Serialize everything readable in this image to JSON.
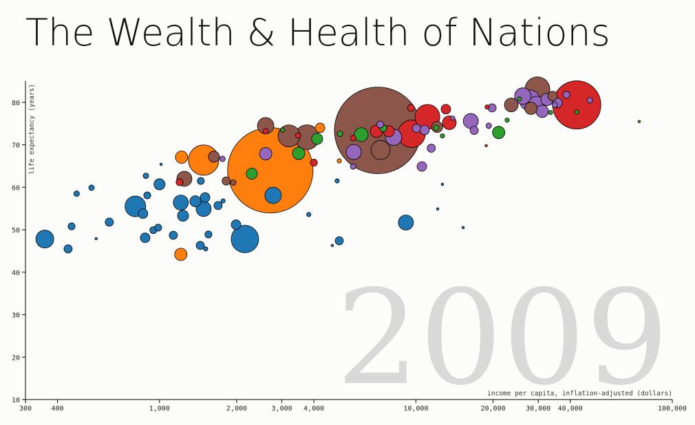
{
  "chart_data": {
    "type": "scatter",
    "title": "The Wealth & Health of Nations",
    "xlabel": "income per capita, inflation-adjusted (dollars)",
    "ylabel": "life expectancy (years)",
    "annotation": "2009",
    "xscale": "log",
    "xlim": [
      300,
      100000
    ],
    "ylim": [
      10,
      85
    ],
    "xticks": [
      300,
      400,
      {
        "value": 1000,
        "label": "1,000"
      },
      {
        "value": 2000,
        "label": "2,000"
      },
      {
        "value": 3000,
        "label": "3,000"
      },
      {
        "value": 4000,
        "label": "4,000"
      },
      {
        "value": 10000,
        "label": "10,000"
      },
      {
        "value": 20000,
        "label": "20,000"
      },
      {
        "value": 30000,
        "label": "30,000"
      },
      {
        "value": 40000,
        "label": "40,000"
      },
      {
        "value": 100000,
        "label": "100,000"
      }
    ],
    "yticks": [
      10,
      20,
      30,
      40,
      50,
      60,
      70,
      80
    ],
    "series": [
      {
        "color": "#1f77b4",
        "x": [
          357,
          440,
          454,
          475,
          543,
          566,
          637,
          805,
          862,
          896,
          879,
          885,
          946,
          988,
          1000,
          1014,
          1132,
          1211,
          1235,
          1380,
          1506,
          1486,
          1449,
          1442,
          1514,
          1552,
          1692,
          1770,
          1988,
          2153,
          2773,
          3820,
          4720,
          5024,
          4930,
          9140,
          12160,
          12690,
          15280
        ],
        "y": [
          47.8,
          45.5,
          50.8,
          58.5,
          59.9,
          47.9,
          51.8,
          55.5,
          53.8,
          58.1,
          48.1,
          62.7,
          49.9,
          50.5,
          60.7,
          65.4,
          48.7,
          56.4,
          53.3,
          56.7,
          57.6,
          54.9,
          61.5,
          46.3,
          45.5,
          48.9,
          55.7,
          56.8,
          51.2,
          47.8,
          58.1,
          53.6,
          46.3,
          47.4,
          61.5,
          51.7,
          54.9,
          60.7,
          50.5
        ],
        "size": [
          52,
          11,
          8,
          5,
          5,
          1,
          11,
          70,
          15,
          8,
          15,
          5,
          8,
          8,
          20,
          1,
          11,
          37,
          20,
          20,
          15,
          37,
          8,
          11,
          3,
          8,
          11,
          3,
          15,
          123,
          44,
          3,
          1,
          11,
          3,
          37,
          1,
          1,
          1
        ]
      },
      {
        "color": "#ff7f0e",
        "x": [
          1211,
          1219,
          1486,
          2704,
          4230,
          5024
        ],
        "y": [
          44.2,
          67.1,
          66.4,
          64.0,
          74.0,
          66.2
        ],
        "size": [
          25,
          25,
          150,
          1190,
          15,
          3
        ]
      },
      {
        "color": "#2ca02c",
        "x": [
          2290,
          3020,
          3490,
          4120,
          5060,
          6120,
          7460,
          12000,
          12690,
          21030,
          22690,
          25350,
          33500,
          42400,
          74300
        ],
        "y": [
          63.2,
          73.5,
          68.0,
          71.4,
          72.6,
          72.4,
          73.9,
          74.0,
          72.1,
          72.9,
          75.8,
          80.8,
          77.6,
          77.7,
          75.5
        ],
        "size": [
          20,
          3,
          25,
          20,
          5,
          31,
          8,
          5,
          3,
          25,
          3,
          3,
          3,
          3,
          1
        ]
      },
      {
        "color": "#d62728",
        "x": [
          1197,
          2594,
          3470,
          4000,
          5690,
          7020,
          7840,
          9620,
          9570,
          11090,
          13090,
          13500,
          42400,
          18950,
          18800
        ],
        "y": [
          61.2,
          73.2,
          72.2,
          65.8,
          71.6,
          73.2,
          73.2,
          72.6,
          78.7,
          76.6,
          78.4,
          75.2,
          79.4,
          78.9,
          69.8
        ],
        "size": [
          8,
          5,
          5,
          8,
          5,
          25,
          20,
          123,
          8,
          100,
          15,
          31,
          378,
          3,
          1
        ]
      },
      {
        "color": "#9467bd",
        "x": [
          1760,
          2594,
          5720,
          5690,
          7260,
          8180,
          10050,
          10550,
          10810,
          11480,
          13930,
          16370,
          16880,
          19820,
          19240,
          26120,
          27790,
          29560,
          31100,
          32460,
          35650,
          34800,
          38640,
          47690
        ],
        "y": [
          66.7,
          67.9,
          68.3,
          64.9,
          74.8,
          71.8,
          73.9,
          64.9,
          73.5,
          69.2,
          76.3,
          75.6,
          73.4,
          78.7,
          74.5,
          81.5,
          80.5,
          79.5,
          77.9,
          80.7,
          79.9,
          79.4,
          81.8,
          80.5
        ],
        "size": [
          5,
          25,
          37,
          5,
          8,
          44,
          11,
          15,
          15,
          11,
          3,
          37,
          11,
          11,
          5,
          44,
          70,
          44,
          25,
          25,
          15,
          5,
          8,
          5
        ]
      },
      {
        "color": "#8c564b",
        "x": [
          1250,
          1630,
          1820,
          1940,
          2594,
          3200,
          3760,
          7100,
          7280,
          12100,
          23550,
          28100,
          29780,
          34100
        ],
        "y": [
          62.0,
          67.2,
          61.5,
          61.1,
          74.5,
          72.1,
          71.8,
          73.4,
          68.8,
          74.2,
          79.4,
          78.6,
          83.1,
          81.5
        ],
        "size": [
          37,
          20,
          11,
          5,
          44,
          79,
          100,
          1225,
          60,
          20,
          31,
          25,
          100,
          15
        ]
      }
    ]
  }
}
